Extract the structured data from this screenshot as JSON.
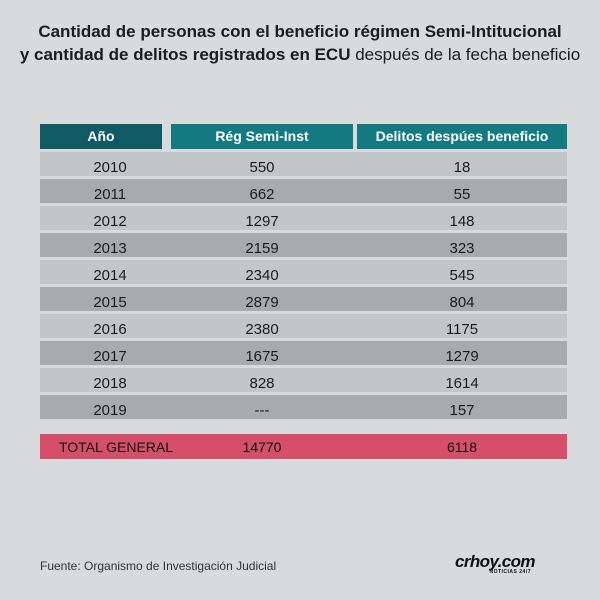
{
  "title": {
    "line1": "Cantidad de personas con el beneficio régimen Semi-Intitucional",
    "line2_bold": "y cantidad de delitos registrados en ECU",
    "line2_light": "después de la fecha beneficio"
  },
  "table": {
    "headers": {
      "year": "Año",
      "reg": "Rég Semi-Inst",
      "del": "Delitos despúes beneficio"
    },
    "rows": [
      {
        "year": "2010",
        "reg": "550",
        "del": "18"
      },
      {
        "year": "2011",
        "reg": "662",
        "del": "55"
      },
      {
        "year": "2012",
        "reg": "1297",
        "del": "148"
      },
      {
        "year": "2013",
        "reg": "2159",
        "del": "323"
      },
      {
        "year": "2014",
        "reg": "2340",
        "del": "545"
      },
      {
        "year": "2015",
        "reg": "2879",
        "del": "804"
      },
      {
        "year": "2016",
        "reg": "2380",
        "del": "1175"
      },
      {
        "year": "2017",
        "reg": "1675",
        "del": "1279"
      },
      {
        "year": "2018",
        "reg": "828",
        "del": "1614"
      },
      {
        "year": "2019",
        "reg": "---",
        "del": "157"
      }
    ],
    "total": {
      "label": "TOTAL GENERAL",
      "reg": "14770",
      "del": "6118"
    }
  },
  "footer": {
    "source": "Fuente: Organismo de Investigación Judicial",
    "logo": "crhoy.com",
    "logo_tag": "NOTICIAS 24/7"
  },
  "colors": {
    "background": "#d8dadb",
    "header_year": "#0f5a63",
    "header_teal": "#147a82",
    "row_light": "#c3c6c8",
    "row_dark": "#a8abae",
    "total": "#d54f6a"
  }
}
